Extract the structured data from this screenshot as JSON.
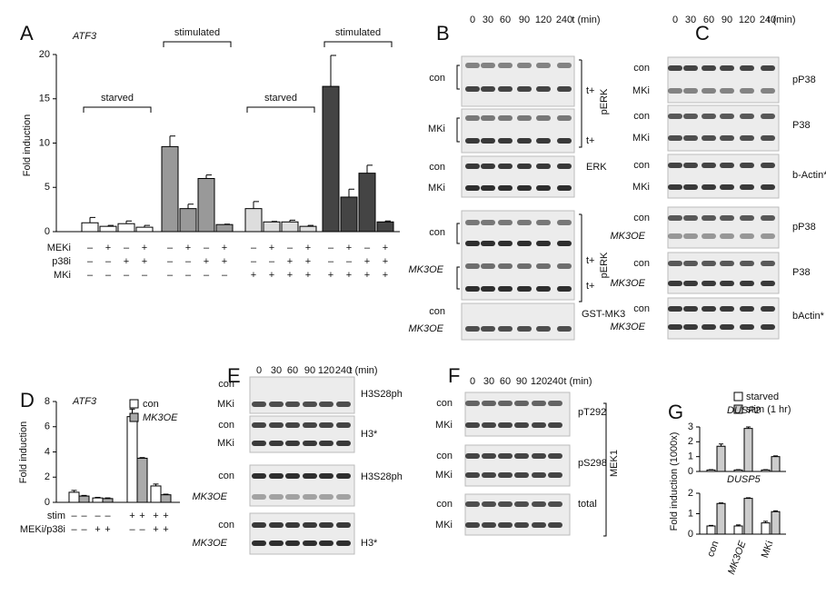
{
  "panel_a": {
    "letter": "A",
    "chart": {
      "type": "bar",
      "gene": "ATF3",
      "ylabel": "Fold induction",
      "ylim": [
        0,
        20
      ],
      "yticks": [
        0,
        5,
        10,
        15,
        20
      ],
      "groups": [
        {
          "label": "starved",
          "color": "#ffffff",
          "values": [
            1.0,
            0.6,
            0.9,
            0.5
          ],
          "errors": [
            0.6,
            0.1,
            0.3,
            0.2
          ]
        },
        {
          "label": "stimulated",
          "color": "#999999",
          "values": [
            9.6,
            2.6,
            6.0,
            0.8
          ],
          "errors": [
            1.2,
            0.5,
            0.4,
            0.05
          ]
        },
        {
          "label": "starved",
          "color": "#dddddd",
          "values": [
            2.6,
            1.1,
            1.1,
            0.6
          ],
          "errors": [
            0.8,
            0.05,
            0.2,
            0.1
          ]
        },
        {
          "label": "stimulated",
          "color": "#444444",
          "values": [
            16.4,
            3.9,
            6.6,
            1.1
          ],
          "errors": [
            3.5,
            0.9,
            0.9,
            0.1
          ]
        }
      ],
      "conditions": [
        {
          "name": "MEKi",
          "signs": [
            "–",
            "+",
            "–",
            "+",
            "–",
            "+",
            "–",
            "+",
            "–",
            "+",
            "–",
            "+",
            "–",
            "+",
            "–",
            "+"
          ]
        },
        {
          "name": "p38i",
          "signs": [
            "–",
            "–",
            "+",
            "+",
            "–",
            "–",
            "+",
            "+",
            "–",
            "–",
            "+",
            "+",
            "–",
            "–",
            "+",
            "+"
          ]
        },
        {
          "name": "MKi",
          "signs": [
            "–",
            "–",
            "–",
            "–",
            "–",
            "–",
            "–",
            "–",
            "+",
            "+",
            "+",
            "+",
            "+",
            "+",
            "+",
            "+"
          ]
        }
      ]
    }
  },
  "panel_b": {
    "letter": "B",
    "times": [
      "0",
      "30",
      "60",
      "90",
      "120",
      "240"
    ],
    "time_unit": "t (min)",
    "rows": [
      "con",
      "MKi",
      "con",
      "MKi",
      "con",
      "MK3OE",
      "con",
      "MK3OE"
    ],
    "right_labels": [
      "t+",
      "t+",
      "ERK",
      "t+",
      "t+",
      "GST-MK3"
    ],
    "side_labels": [
      "pERK",
      "pERK"
    ]
  },
  "panel_c": {
    "letter": "C",
    "times": [
      "0",
      "30",
      "60",
      "90",
      "120",
      "240"
    ],
    "time_unit": "t (min)",
    "rows": [
      "con",
      "MKi",
      "con",
      "MKi",
      "con",
      "MKi",
      "con",
      "MK3OE",
      "con",
      "MK3OE",
      "con",
      "MK3OE"
    ],
    "right_labels": [
      "pP38",
      "P38",
      "b-Actin*",
      "pP38",
      "P38",
      "bActin*"
    ]
  },
  "panel_d": {
    "letter": "D",
    "chart": {
      "type": "bar",
      "gene": "ATF3",
      "ylabel": "Fold induction",
      "ylim": [
        0,
        8
      ],
      "yticks": [
        0,
        2,
        4,
        6,
        8
      ],
      "series": [
        {
          "name": "con",
          "color": "#ffffff",
          "values": [
            0.8,
            0.35,
            6.8,
            1.3
          ],
          "errors": [
            0.15,
            0.05,
            0.6,
            0.15
          ]
        },
        {
          "name": "MK3OE",
          "color": "#aaaaaa",
          "values": [
            0.5,
            0.3,
            3.5,
            0.6
          ],
          "errors": [
            0.05,
            0.05,
            0.05,
            0.05
          ]
        }
      ],
      "conditions": [
        {
          "name": "stim",
          "signs": [
            "–",
            "–",
            "–",
            "–",
            "+",
            "+",
            "+",
            "+"
          ]
        },
        {
          "name": "MEKi/p38i",
          "signs": [
            "–",
            "–",
            "+",
            "+",
            "–",
            "–",
            "+",
            "+"
          ]
        }
      ]
    }
  },
  "panel_e": {
    "letter": "E",
    "times": [
      "0",
      "30",
      "60",
      "90",
      "120",
      "240"
    ],
    "time_unit": "t (min)",
    "rows": [
      "con",
      "MKi",
      "con",
      "MKi",
      "con",
      "MK3OE",
      "con",
      "MK3OE"
    ],
    "right_labels": [
      "H3S28ph",
      "H3*",
      "H3S28ph",
      "H3*"
    ]
  },
  "panel_f": {
    "letter": "F",
    "times": [
      "0",
      "30",
      "60",
      "90",
      "120",
      "240"
    ],
    "time_unit": "t (min)",
    "rows": [
      "con",
      "MKi",
      "con",
      "MKi",
      "con",
      "MKi"
    ],
    "right_labels": [
      "pT292",
      "pS298",
      "total"
    ],
    "side_labels": [
      "MEK1"
    ]
  },
  "panel_g": {
    "letter": "G",
    "chart": {
      "type": "bar",
      "ylabel": "Fold induction (1000x)",
      "categories": [
        "con",
        "MK3OE",
        "MKi"
      ],
      "series_names": [
        "starved",
        "stim (1 hr)"
      ],
      "colors": [
        "#ffffff",
        "#cccccc"
      ],
      "plots": [
        {
          "gene": "DUSP2",
          "ylim": [
            0,
            3
          ],
          "yticks": [
            0,
            1,
            2,
            3
          ],
          "values": [
            [
              0.1,
              0.1,
              0.1
            ],
            [
              1.7,
              2.9,
              1.0
            ]
          ],
          "errors": [
            [
              0.02,
              0.02,
              0.02
            ],
            [
              0.15,
              0.1,
              0.05
            ]
          ]
        },
        {
          "gene": "DUSP5",
          "ylim": [
            0,
            2
          ],
          "yticks": [
            0,
            1,
            2
          ],
          "values": [
            [
              0.4,
              0.4,
              0.55
            ],
            [
              1.5,
              1.75,
              1.1
            ]
          ],
          "errors": [
            [
              0.03,
              0.05,
              0.08
            ],
            [
              0.03,
              0.03,
              0.04
            ]
          ]
        }
      ]
    }
  }
}
